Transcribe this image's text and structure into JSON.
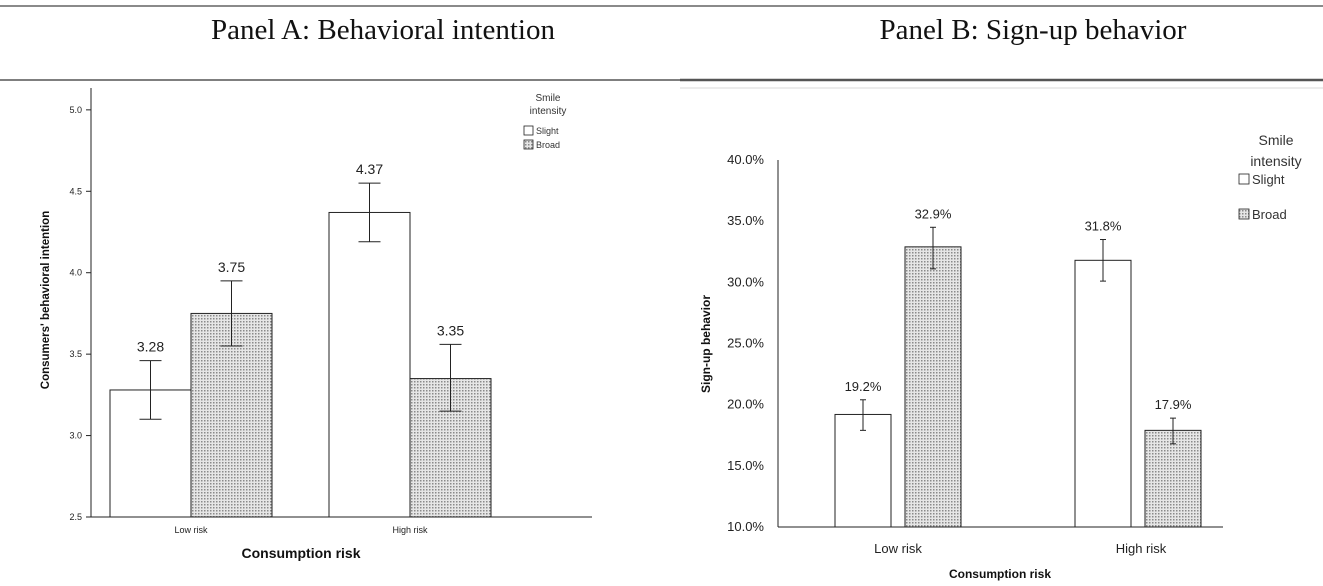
{
  "panels": {
    "a_title": "Panel A: Behavioral intention",
    "b_title": "Panel B: Sign-up behavior"
  },
  "colors": {
    "slight_fill": "#ffffff",
    "broad_fill": "#d3d3d3",
    "axis": "#222222"
  },
  "chart_data": [
    {
      "type": "bar",
      "title": "Panel A: Behavioral intention",
      "xlabel": "Consumption risk",
      "ylabel": "Consumers' behavioral intention",
      "categories": [
        "Low risk",
        "High risk"
      ],
      "ylim": [
        2.5,
        5.3
      ],
      "yticks": [
        "2.5",
        "3.0",
        "3.5",
        "4.0",
        "4.5",
        "5.0"
      ],
      "legend_title": "Smile intensity",
      "legend_position": "top-right",
      "grid": false,
      "series": [
        {
          "name": "Slight",
          "values": [
            3.28,
            4.37
          ],
          "labels": [
            "3.28",
            "4.37"
          ],
          "err_low": [
            3.1,
            4.19
          ],
          "err_high": [
            3.46,
            4.55
          ]
        },
        {
          "name": "Broad",
          "values": [
            3.75,
            3.35
          ],
          "labels": [
            "3.75",
            "3.35"
          ],
          "err_low": [
            3.55,
            3.15
          ],
          "err_high": [
            3.95,
            3.56
          ]
        }
      ]
    },
    {
      "type": "bar",
      "title": "Panel B: Sign-up behavior",
      "xlabel": "Consumption risk",
      "ylabel": "Sign-up behavior",
      "categories": [
        "Low risk",
        "High risk"
      ],
      "ylim": [
        10,
        40
      ],
      "yticks": [
        "10.0%",
        "15.0%",
        "20.0%",
        "25.0%",
        "30.0%",
        "35.0%",
        "40.0%"
      ],
      "legend_title": "Smile intensity",
      "legend_position": "top-right",
      "grid": false,
      "series": [
        {
          "name": "Slight",
          "values": [
            19.2,
            31.8
          ],
          "labels": [
            "19.2%",
            "31.8%"
          ],
          "err_low": [
            17.9,
            30.1
          ],
          "err_high": [
            20.4,
            33.5
          ]
        },
        {
          "name": "Broad",
          "values": [
            32.9,
            17.9
          ],
          "labels": [
            "32.9%",
            "17.9%"
          ],
          "err_low": [
            31.1,
            16.8
          ],
          "err_high": [
            34.5,
            18.9
          ]
        }
      ]
    }
  ]
}
